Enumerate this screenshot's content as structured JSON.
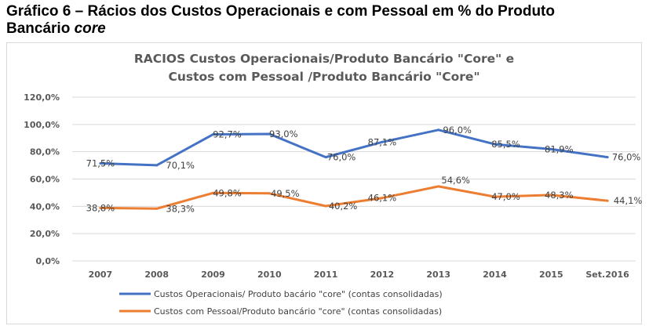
{
  "caption": {
    "main": "Gráfico 6 – Rácios dos Custos Operacionais e com Pessoal em % do Produto",
    "line2": "Bancário",
    "line2_italic": "core"
  },
  "chart_data": {
    "type": "line",
    "title": "RACIOS Custos Operacionais/Produto  Bancário \"Core\"  e",
    "subtitle": "Custos com Pessoal /Produto Bancário \"Core\"",
    "xlabel": "",
    "ylabel": "",
    "categories": [
      "2007",
      "2008",
      "2009",
      "2010",
      "2011",
      "2012",
      "2013",
      "2014",
      "2015",
      "Set.2016"
    ],
    "ylim": [
      0,
      120
    ],
    "yticks": [
      0,
      20,
      40,
      60,
      80,
      100,
      120
    ],
    "ytick_labels": [
      "0,0%",
      "20,0%",
      "40,0%",
      "60,0%",
      "80,0%",
      "100,0%",
      "120,0%"
    ],
    "grid": true,
    "legend_position": "bottom",
    "series": [
      {
        "name": "Custos Operacionais/ Produto bacário \"core\" (contas consolidadas)",
        "color": "#4472c4",
        "values": [
          71.5,
          70.1,
          92.7,
          93.0,
          76.0,
          87.1,
          96.0,
          85.5,
          81.9,
          76.0
        ],
        "labels": [
          "71,5%",
          "70,1%",
          "92,7%",
          "93,0%",
          "76,0%",
          "87,1%",
          "96,0%",
          "85,5%",
          "81,9%",
          "76,0%"
        ]
      },
      {
        "name": "Custos com Pessoal/Produto bancário \"core\" (contas consolidadas)",
        "color": "#ed7d31",
        "values": [
          38.8,
          38.3,
          49.8,
          49.5,
          40.2,
          46.1,
          54.6,
          47.0,
          48.3,
          44.1
        ],
        "labels": [
          "38,8%",
          "38,3%",
          "49,8%",
          "49,5%",
          "40,2%",
          "46,1%",
          "54,6%",
          "47,0%",
          "48,3%",
          "44,1%"
        ]
      }
    ]
  }
}
